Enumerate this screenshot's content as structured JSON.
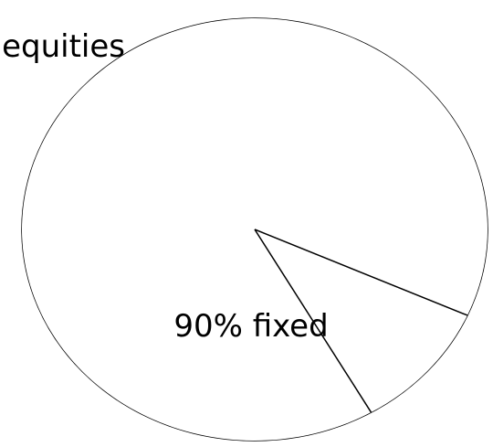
{
  "chart_data": {
    "type": "pie",
    "slices": [
      {
        "label": "90% fixed",
        "value": 90,
        "color": "#ffffff"
      },
      {
        "label": "equities",
        "value": 10,
        "color": "#ffffff"
      }
    ],
    "title": "",
    "legend": "none",
    "stroke_color": "#000000",
    "background": "#ffffff"
  }
}
